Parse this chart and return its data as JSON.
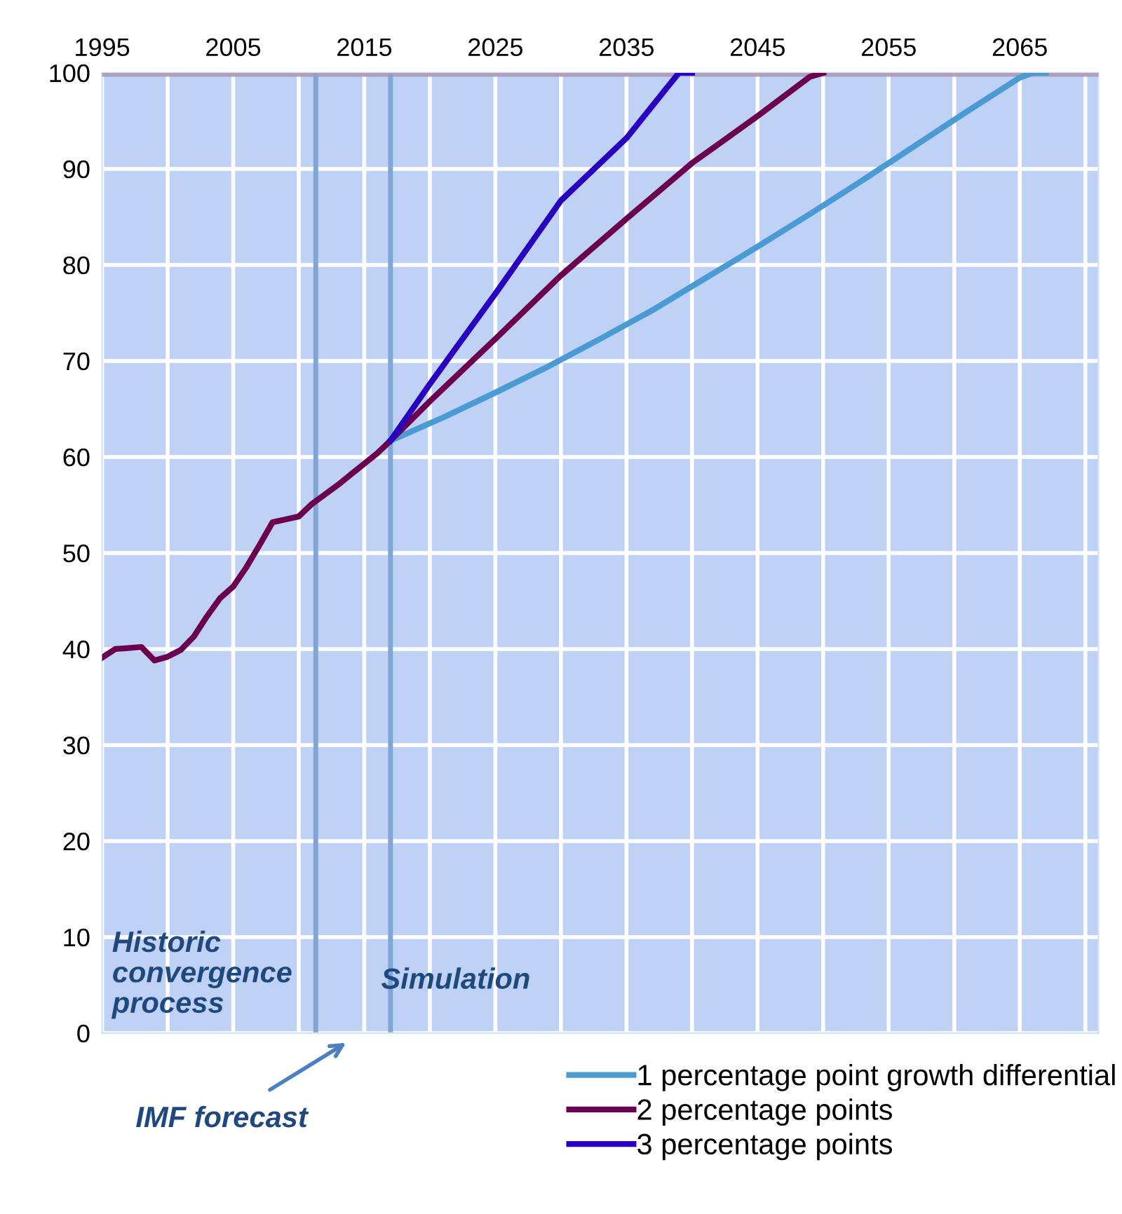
{
  "chart_data": {
    "type": "line",
    "xlim": [
      1995,
      2071
    ],
    "ylim": [
      0,
      100
    ],
    "xticks": [
      1995,
      {
        "value": 2000,
        "label": null
      },
      2005,
      {
        "value": 2010,
        "label": null
      },
      2015,
      {
        "value": 2020,
        "label": null
      },
      2025,
      {
        "value": 2030,
        "label": null
      },
      2035,
      {
        "value": 2040,
        "label": null
      },
      2045,
      {
        "value": 2050,
        "label": null
      },
      2055,
      {
        "value": 2060,
        "label": null
      },
      2065,
      {
        "value": 2070,
        "label": null
      }
    ],
    "yticks": [
      0,
      10,
      20,
      30,
      40,
      50,
      60,
      70,
      80,
      90,
      100
    ],
    "grid": true,
    "legend": "bottom right",
    "marker": "none",
    "line_style": "solid",
    "series": [
      {
        "name": "1 percentage point growth differential",
        "color": "#4a9ad4",
        "x": [
          2017,
          2021,
          2025,
          2029,
          2033,
          2037,
          2041,
          2045,
          2049,
          2053,
          2057,
          2061,
          2065,
          2066,
          2067
        ],
        "values": [
          61.7,
          64.1,
          66.7,
          69.4,
          72.3,
          75.3,
          78.6,
          81.9,
          85.3,
          88.8,
          92.4,
          96.0,
          99.5,
          100,
          100
        ]
      },
      {
        "name": "2 percentage points",
        "color": "#6b0050",
        "x": [
          1995,
          1996,
          1997,
          1998,
          1999,
          2000,
          2001,
          2002,
          2003,
          2004,
          2005,
          2006,
          2007,
          2008,
          2009,
          2010,
          2011,
          2012,
          2013,
          2014,
          2015,
          2016,
          2017,
          2020,
          2025,
          2030,
          2035,
          2040,
          2045,
          2049,
          2050
        ],
        "values": [
          39.1,
          40.0,
          40.1,
          40.2,
          38.8,
          39.2,
          39.9,
          41.3,
          43.4,
          45.3,
          46.5,
          48.5,
          50.8,
          53.2,
          53.5,
          53.8,
          55.1,
          56.1,
          57.1,
          58.2,
          59.3,
          60.4,
          61.7,
          65.8,
          72.3,
          78.9,
          84.8,
          90.6,
          95.5,
          99.6,
          100
        ]
      },
      {
        "name": "3 percentage points",
        "color": "#2a00c0",
        "x": [
          2017,
          2020,
          2025,
          2030,
          2035,
          2038,
          2039,
          2040
        ],
        "values": [
          61.7,
          67.6,
          77.0,
          86.7,
          93.2,
          98.3,
          100,
          100
        ]
      }
    ],
    "ref_lines": [
      {
        "axis": "y",
        "value": 100,
        "color": "#a898b8"
      },
      {
        "axis": "x",
        "value": 2011.3,
        "color": "#7fa6d8"
      },
      {
        "axis": "x",
        "value": 2017,
        "color": "#7fa6d8"
      }
    ],
    "annotations": [
      "Historic\nconvergence\nprocess",
      "Simulation",
      "IMF forecast"
    ]
  }
}
